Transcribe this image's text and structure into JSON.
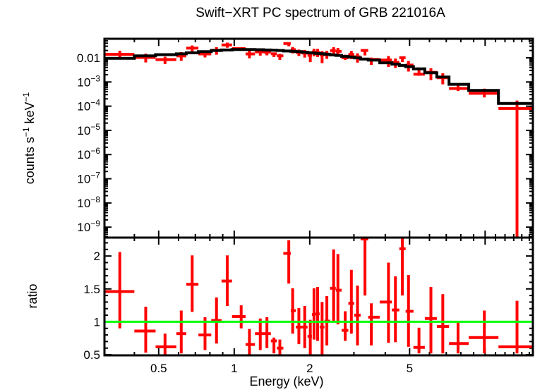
{
  "title": "Swift−XRT PC spectrum of GRB 221016A",
  "axes": {
    "xlabel": "Energy (keV)",
    "ylabel_top": "counts s−1 keV−1",
    "ylabel_top_parts": {
      "p1": "counts s",
      "s1": "−1",
      "p2": " keV",
      "s2": "−1"
    },
    "ylabel_bottom": "ratio"
  },
  "colors": {
    "data": "#ff0000",
    "model": "#000000",
    "ratio_line": "#00ff00",
    "frame": "#000000",
    "background": "#ffffff"
  },
  "chart_data": {
    "type": "scatter",
    "title": "Swift−XRT PC spectrum of GRB 221016A",
    "xlabel": "Energy (keV)",
    "ylabel_top": "counts s−1 keV−1",
    "ylabel_bottom": "ratio",
    "x_scale": "log",
    "y_scale_top": "log",
    "y_scale_bottom": "linear",
    "grid": false,
    "x_range": [
      0.304,
      15.5
    ],
    "y_range_top": [
      3.7e-10,
      0.061
    ],
    "y_range_bottom": [
      0.49,
      2.28
    ],
    "x_ticks": [
      {
        "value": 0.5,
        "label": "0.5"
      },
      {
        "value": 1,
        "label": "1"
      },
      {
        "value": 2,
        "label": "2"
      },
      {
        "value": 5,
        "label": "5"
      },
      {
        "value": 10,
        "label": null
      }
    ],
    "y_ticks_top": [
      {
        "value": 0.01,
        "base": "0.01",
        "exp": null
      },
      {
        "value": 0.001,
        "base": "10",
        "exp": "−3"
      },
      {
        "value": 0.0001,
        "base": "10",
        "exp": "−4"
      },
      {
        "value": 1e-05,
        "base": "10",
        "exp": "−5"
      },
      {
        "value": 1e-06,
        "base": "10",
        "exp": "−6"
      },
      {
        "value": 1e-07,
        "base": "10",
        "exp": "−7"
      },
      {
        "value": 1e-08,
        "base": "10",
        "exp": "−8"
      },
      {
        "value": 1e-09,
        "base": "10",
        "exp": "−9"
      }
    ],
    "y_ticks_bottom": [
      {
        "value": 2,
        "label": "2"
      },
      {
        "value": 1.5,
        "label": "1.5"
      },
      {
        "value": 1,
        "label": "1"
      },
      {
        "value": 0.5,
        "label": "0.5"
      }
    ],
    "ratio_reference_line": 1,
    "points": [
      {
        "e": 0.35,
        "elo": 0.304,
        "ehi": 0.4,
        "rate": 0.0139,
        "rate_lo": 0.0086,
        "rate_hi": 0.0196,
        "model": 0.0095,
        "ratio": 1.46,
        "ratio_lo": 0.9,
        "ratio_hi": 2.06
      },
      {
        "e": 0.444,
        "elo": 0.4,
        "ehi": 0.486,
        "rate": 0.0103,
        "rate_lo": 0.0064,
        "rate_hi": 0.0148,
        "model": 0.012,
        "ratio": 0.86,
        "ratio_lo": 0.53,
        "ratio_hi": 1.23
      },
      {
        "e": 0.53,
        "elo": 0.486,
        "ehi": 0.588,
        "rate": 0.0084,
        "rate_lo": 0.0055,
        "rate_hi": 0.0111,
        "model": 0.0135,
        "ratio": 0.62,
        "ratio_lo": 0.41,
        "ratio_hi": 0.82
      },
      {
        "e": 0.615,
        "elo": 0.588,
        "ehi": 0.644,
        "rate": 0.0119,
        "rate_lo": 0.0075,
        "rate_hi": 0.017,
        "model": 0.0145,
        "ratio": 0.82,
        "ratio_lo": 0.52,
        "ratio_hi": 1.17
      },
      {
        "e": 0.68,
        "elo": 0.644,
        "ehi": 0.72,
        "rate": 0.0251,
        "rate_lo": 0.0184,
        "rate_hi": 0.0322,
        "model": 0.016,
        "ratio": 1.57,
        "ratio_lo": 1.15,
        "ratio_hi": 2.01
      },
      {
        "e": 0.765,
        "elo": 0.72,
        "ehi": 0.81,
        "rate": 0.0144,
        "rate_lo": 0.0103,
        "rate_hi": 0.0193,
        "model": 0.018,
        "ratio": 0.8,
        "ratio_lo": 0.57,
        "ratio_hi": 1.07
      },
      {
        "e": 0.85,
        "elo": 0.81,
        "ehi": 0.89,
        "rate": 0.0204,
        "rate_lo": 0.0134,
        "rate_hi": 0.0274,
        "model": 0.02,
        "ratio": 1.02,
        "ratio_lo": 0.67,
        "ratio_hi": 1.37
      },
      {
        "e": 0.938,
        "elo": 0.89,
        "ehi": 0.98,
        "rate": 0.034,
        "rate_lo": 0.026,
        "rate_hi": 0.0422,
        "model": 0.021,
        "ratio": 1.62,
        "ratio_lo": 1.24,
        "ratio_hi": 2.01
      },
      {
        "e": 1.066,
        "elo": 0.98,
        "ehi": 1.11,
        "rate": 0.0238,
        "rate_lo": 0.0198,
        "rate_hi": 0.0275,
        "model": 0.022,
        "ratio": 1.08,
        "ratio_lo": 0.9,
        "ratio_hi": 1.25
      },
      {
        "e": 1.15,
        "elo": 1.11,
        "ehi": 1.21,
        "rate": 0.0144,
        "rate_lo": 0.0095,
        "rate_hi": 0.0196,
        "model": 0.022,
        "ratio": 0.655,
        "ratio_lo": 0.43,
        "ratio_hi": 0.89
      },
      {
        "e": 1.27,
        "elo": 1.21,
        "ehi": 1.31,
        "rate": 0.0176,
        "rate_lo": 0.0123,
        "rate_hi": 0.0226,
        "model": 0.0215,
        "ratio": 0.82,
        "ratio_lo": 0.57,
        "ratio_hi": 1.05
      },
      {
        "e": 1.35,
        "elo": 1.31,
        "ehi": 1.4,
        "rate": 0.0172,
        "rate_lo": 0.0126,
        "rate_hi": 0.0225,
        "model": 0.021,
        "ratio": 0.82,
        "ratio_lo": 0.6,
        "ratio_hi": 1.07
      },
      {
        "e": 1.44,
        "elo": 1.4,
        "ehi": 1.48,
        "rate": 0.0146,
        "rate_lo": 0.0107,
        "rate_hi": 0.0156,
        "model": 0.0205,
        "ratio": 0.71,
        "ratio_lo": 0.52,
        "ratio_hi": 0.76
      },
      {
        "e": 1.52,
        "elo": 1.48,
        "ehi": 1.57,
        "rate": 0.012,
        "rate_lo": 0.0082,
        "rate_hi": 0.0146,
        "model": 0.02,
        "ratio": 0.6,
        "ratio_lo": 0.41,
        "ratio_hi": 0.73
      },
      {
        "e": 1.65,
        "elo": 1.57,
        "ehi": 1.68,
        "rate": 0.0388,
        "rate_lo": 0.03,
        "rate_hi": 0.0426,
        "model": 0.019,
        "ratio": 2.04,
        "ratio_lo": 1.58,
        "ratio_hi": 2.24
      },
      {
        "e": 1.71,
        "elo": 1.68,
        "ehi": 1.76,
        "rate": 0.0216,
        "rate_lo": 0.0152,
        "rate_hi": 0.0279,
        "model": 0.0185,
        "ratio": 1.17,
        "ratio_lo": 0.82,
        "ratio_hi": 1.51
      },
      {
        "e": 1.81,
        "elo": 1.76,
        "ehi": 1.86,
        "rate": 0.0166,
        "rate_lo": 0.0119,
        "rate_hi": 0.0218,
        "model": 0.018,
        "ratio": 0.92,
        "ratio_lo": 0.66,
        "ratio_hi": 1.21
      },
      {
        "e": 1.91,
        "elo": 1.86,
        "ehi": 1.96,
        "rate": 0.0156,
        "rate_lo": 0.0102,
        "rate_hi": 0.0211,
        "model": 0.017,
        "ratio": 0.92,
        "ratio_lo": 0.6,
        "ratio_hi": 1.24
      },
      {
        "e": 2.01,
        "elo": 1.96,
        "ehi": 2.04,
        "rate": 0.0126,
        "rate_lo": 0.0066,
        "rate_hi": 0.0167,
        "model": 0.0162,
        "ratio": 0.78,
        "ratio_lo": 0.41,
        "ratio_hi": 1.03
      },
      {
        "e": 2.08,
        "elo": 2.04,
        "ehi": 2.11,
        "rate": 0.0174,
        "rate_lo": 0.0115,
        "rate_hi": 0.0237,
        "model": 0.0157,
        "ratio": 1.11,
        "ratio_lo": 0.73,
        "ratio_hi": 1.51
      },
      {
        "e": 2.15,
        "elo": 2.11,
        "ehi": 2.19,
        "rate": 0.017,
        "rate_lo": 0.0108,
        "rate_hi": 0.0233,
        "model": 0.0152,
        "ratio": 1.12,
        "ratio_lo": 0.71,
        "ratio_hi": 1.53
      },
      {
        "e": 2.24,
        "elo": 2.19,
        "ehi": 2.29,
        "rate": 0.0134,
        "rate_lo": 0.006,
        "rate_hi": 0.019,
        "model": 0.0146,
        "ratio": 0.92,
        "ratio_lo": 0.41,
        "ratio_hi": 1.3
      },
      {
        "e": 2.34,
        "elo": 2.29,
        "ehi": 2.41,
        "rate": 0.0141,
        "rate_lo": 0.009,
        "rate_hi": 0.0195,
        "model": 0.014,
        "ratio": 1.01,
        "ratio_lo": 0.64,
        "ratio_hi": 1.39
      },
      {
        "e": 2.49,
        "elo": 2.41,
        "ehi": 2.54,
        "rate": 0.0198,
        "rate_lo": 0.0131,
        "rate_hi": 0.0275,
        "model": 0.0131,
        "ratio": 1.51,
        "ratio_lo": 1.0,
        "ratio_hi": 2.1
      },
      {
        "e": 2.59,
        "elo": 2.54,
        "ehi": 2.68,
        "rate": 0.0185,
        "rate_lo": 0.012,
        "rate_hi": 0.0254,
        "model": 0.0125,
        "ratio": 1.48,
        "ratio_lo": 0.96,
        "ratio_hi": 2.03
      },
      {
        "e": 2.77,
        "elo": 2.68,
        "ehi": 2.85,
        "rate": 0.01,
        "rate_lo": 0.0082,
        "rate_hi": 0.0133,
        "model": 0.0115,
        "ratio": 0.87,
        "ratio_lo": 0.71,
        "ratio_hi": 1.16
      },
      {
        "e": 2.93,
        "elo": 2.85,
        "ehi": 3.01,
        "rate": 0.0137,
        "rate_lo": 0.0088,
        "rate_hi": 0.0192,
        "model": 0.0107,
        "ratio": 1.28,
        "ratio_lo": 0.82,
        "ratio_hi": 1.79
      },
      {
        "e": 3.1,
        "elo": 3.01,
        "ehi": 3.19,
        "rate": 0.0109,
        "rate_lo": 0.0063,
        "rate_hi": 0.0153,
        "model": 0.0099,
        "ratio": 1.1,
        "ratio_lo": 0.64,
        "ratio_hi": 1.55
      },
      {
        "e": 3.32,
        "elo": 3.19,
        "ehi": 3.42,
        "rate": 0.0201,
        "rate_lo": 0.0125,
        "rate_hi": 0.0205,
        "model": 0.0089,
        "ratio": 2.26,
        "ratio_lo": 1.4,
        "ratio_hi": 2.3
      },
      {
        "e": 3.52,
        "elo": 3.42,
        "ehi": 3.8,
        "rate": 0.0086,
        "rate_lo": 0.0051,
        "rate_hi": 0.0102,
        "model": 0.008,
        "ratio": 1.07,
        "ratio_lo": 0.64,
        "ratio_hi": 1.28
      },
      {
        "e": 4.12,
        "elo": 3.8,
        "ehi": 4.25,
        "rate": 0.0081,
        "rate_lo": 0.0042,
        "rate_hi": 0.0118,
        "model": 0.0062,
        "ratio": 1.3,
        "ratio_lo": 0.68,
        "ratio_hi": 1.9
      },
      {
        "e": 4.39,
        "elo": 4.25,
        "ehi": 4.55,
        "rate": 0.0065,
        "rate_lo": 0.0038,
        "rate_hi": 0.0093,
        "model": 0.0055,
        "ratio": 1.18,
        "ratio_lo": 0.69,
        "ratio_hi": 1.69
      },
      {
        "e": 4.68,
        "elo": 4.55,
        "ehi": 4.82,
        "rate": 0.0101,
        "rate_lo": 0.0067,
        "rate_hi": 0.011,
        "model": 0.0048,
        "ratio": 2.11,
        "ratio_lo": 1.4,
        "ratio_hi": 2.3
      },
      {
        "e": 4.95,
        "elo": 4.82,
        "ehi": 5.18,
        "rate": 0.005,
        "rate_lo": 0.0027,
        "rate_hi": 0.0074,
        "model": 0.0043,
        "ratio": 1.16,
        "ratio_lo": 0.62,
        "ratio_hi": 1.71
      },
      {
        "e": 5.45,
        "elo": 5.18,
        "ehi": 5.75,
        "rate": 0.0021,
        "rate_lo": 0.0018,
        "rate_hi": 0.0032,
        "model": 0.0035,
        "ratio": 0.61,
        "ratio_lo": 0.52,
        "ratio_hi": 0.91
      },
      {
        "e": 6.08,
        "elo": 5.75,
        "ehi": 6.42,
        "rate": 0.0025,
        "rate_lo": 0.0012,
        "rate_hi": 0.0037,
        "model": 0.0024,
        "ratio": 1.05,
        "ratio_lo": 0.52,
        "ratio_hi": 1.53
      },
      {
        "e": 6.78,
        "elo": 6.42,
        "ehi": 7.18,
        "rate": 0.0015,
        "rate_lo": 0.0008,
        "rate_hi": 0.0023,
        "model": 0.0016,
        "ratio": 0.93,
        "ratio_lo": 0.52,
        "ratio_hi": 1.42
      },
      {
        "e": 7.8,
        "elo": 7.18,
        "ehi": 8.6,
        "rate": 0.00054,
        "rate_lo": 0.00042,
        "rate_hi": 0.00079,
        "model": 0.0008,
        "ratio": 0.67,
        "ratio_lo": 0.52,
        "ratio_hi": 0.99
      },
      {
        "e": 9.93,
        "elo": 8.6,
        "ehi": 11.3,
        "rate": 0.00034,
        "rate_lo": 0.00023,
        "rate_hi": 0.00053,
        "model": 0.00045,
        "ratio": 0.76,
        "ratio_lo": 0.52,
        "ratio_hi": 1.17
      },
      {
        "e": 13.4,
        "elo": 11.3,
        "ehi": 15.5,
        "rate": 8e-05,
        "rate_lo": 1e-10,
        "rate_hi": 0.00017,
        "model": 0.00013,
        "ratio": 0.62,
        "ratio_lo": 0.52,
        "ratio_hi": 1.32
      }
    ]
  }
}
